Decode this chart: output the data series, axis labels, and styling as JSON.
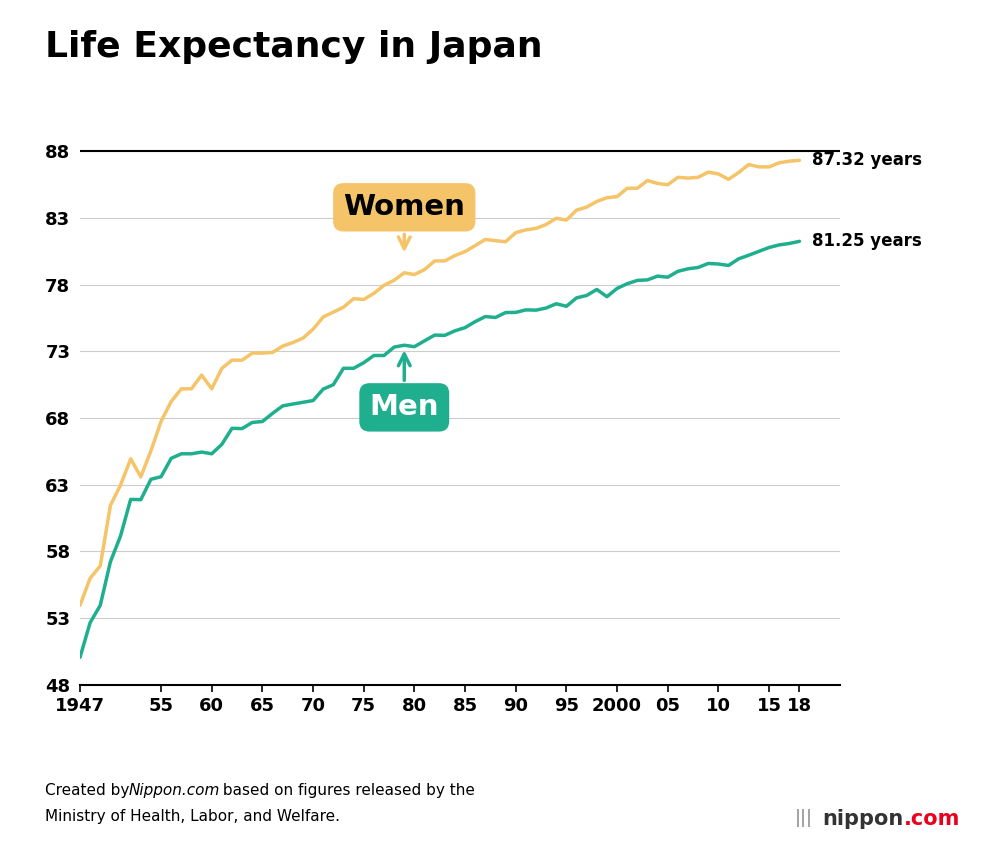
{
  "title": "Life Expectancy in Japan",
  "title_fontsize": 26,
  "women_color": "#F5C469",
  "men_color": "#1FAF8E",
  "background_color": "#FFFFFF",
  "grid_color": "#CCCCCC",
  "xlim": [
    1947,
    2022
  ],
  "ylim": [
    48,
    91
  ],
  "yticks": [
    48,
    53,
    58,
    63,
    68,
    73,
    78,
    83,
    88
  ],
  "xtick_positions": [
    1947,
    1955,
    1960,
    1965,
    1970,
    1975,
    1980,
    1985,
    1990,
    1995,
    2000,
    2005,
    2010,
    2015,
    2018
  ],
  "xtick_labels": [
    "1947",
    "55",
    "60",
    "65",
    "70",
    "75",
    "80",
    "85",
    "90",
    "95",
    "2000",
    "05",
    "10",
    "15",
    "18"
  ],
  "women_label": "Women",
  "men_label": "Men",
  "women_end_label": "87.32 years",
  "men_end_label": "81.25 years",
  "hline_y": 88,
  "source_line1": "Created by ",
  "source_italic": "Nippon.com",
  "source_line1_rest": " based on figures released by the",
  "source_line2": "Ministry of Health, Labor, and Welfare.",
  "years": [
    1947,
    1948,
    1949,
    1950,
    1951,
    1952,
    1953,
    1954,
    1955,
    1956,
    1957,
    1958,
    1959,
    1960,
    1961,
    1962,
    1963,
    1964,
    1965,
    1966,
    1967,
    1968,
    1969,
    1970,
    1971,
    1972,
    1973,
    1974,
    1975,
    1976,
    1977,
    1978,
    1979,
    1980,
    1981,
    1982,
    1983,
    1984,
    1985,
    1986,
    1987,
    1988,
    1989,
    1990,
    1991,
    1992,
    1993,
    1994,
    1995,
    1996,
    1997,
    1998,
    1999,
    2000,
    2001,
    2002,
    2003,
    2004,
    2005,
    2006,
    2007,
    2008,
    2009,
    2010,
    2011,
    2012,
    2013,
    2014,
    2015,
    2016,
    2017,
    2018
  ],
  "women": [
    53.96,
    55.99,
    56.92,
    61.45,
    62.97,
    64.94,
    63.59,
    65.54,
    67.75,
    69.24,
    70.19,
    70.19,
    71.22,
    70.19,
    71.73,
    72.34,
    72.34,
    72.87,
    72.87,
    72.92,
    73.39,
    73.66,
    73.99,
    74.66,
    75.58,
    75.94,
    76.31,
    76.95,
    76.89,
    77.35,
    77.95,
    78.33,
    78.89,
    78.76,
    79.13,
    79.78,
    79.78,
    80.18,
    80.48,
    80.93,
    81.39,
    81.3,
    81.22,
    81.9,
    82.11,
    82.22,
    82.51,
    82.98,
    82.84,
    83.59,
    83.82,
    84.24,
    84.52,
    84.6,
    85.23,
    85.23,
    85.81,
    85.59,
    85.49,
    86.05,
    85.99,
    86.05,
    86.44,
    86.3,
    85.9,
    86.41,
    87.01,
    86.83,
    86.83,
    87.14,
    87.26,
    87.32
  ],
  "men": [
    50.06,
    52.66,
    53.96,
    57.22,
    59.16,
    61.9,
    61.88,
    63.41,
    63.6,
    64.98,
    65.32,
    65.32,
    65.45,
    65.32,
    66.03,
    67.23,
    67.21,
    67.67,
    67.74,
    68.35,
    68.91,
    69.05,
    69.18,
    69.31,
    70.17,
    70.5,
    71.73,
    71.73,
    72.15,
    72.69,
    72.69,
    73.32,
    73.46,
    73.35,
    73.79,
    74.22,
    74.2,
    74.54,
    74.78,
    75.23,
    75.61,
    75.54,
    75.91,
    75.92,
    76.11,
    76.09,
    76.25,
    76.57,
    76.38,
    77.01,
    77.19,
    77.64,
    77.1,
    77.72,
    78.07,
    78.32,
    78.36,
    78.64,
    78.56,
    79.0,
    79.19,
    79.29,
    79.59,
    79.55,
    79.44,
    79.94,
    80.21,
    80.5,
    80.79,
    80.98,
    81.09,
    81.25
  ]
}
